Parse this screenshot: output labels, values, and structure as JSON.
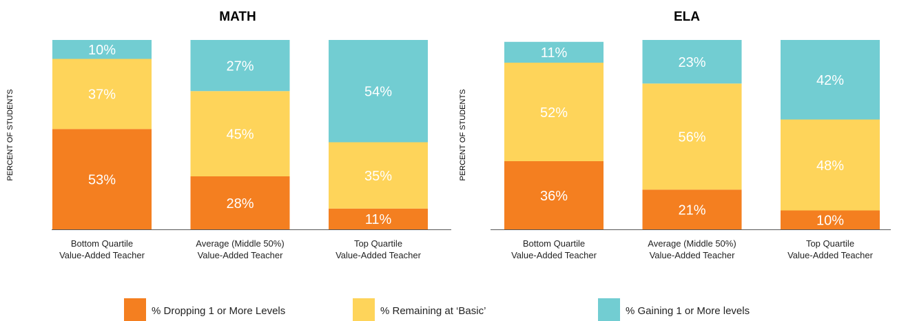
{
  "chart_data": [
    {
      "type": "stacked_bar",
      "title": "MATH",
      "y_label": "PERCENT OF STUDENTS",
      "categories": [
        "Bottom Quartile\nValue-Added Teacher",
        "Average (Middle 50%)\nValue-Added Teacher",
        "Top Quartile\nValue-Added Teacher"
      ],
      "ylim": [
        0,
        100
      ],
      "series": [
        {
          "name": "% Dropping 1 or More Levels",
          "color": "#f47f20",
          "values": [
            53,
            28,
            11
          ],
          "value_labels": [
            "53%",
            "28%",
            "11%"
          ]
        },
        {
          "name": "% Remaining at ‘Basic’",
          "color": "#fed45a",
          "values": [
            37,
            45,
            35
          ],
          "value_labels": [
            "37%",
            "45%",
            "35%"
          ]
        },
        {
          "name": "% Gaining 1 or More levels",
          "color": "#72cdd2",
          "values": [
            10,
            27,
            54
          ],
          "value_labels": [
            "10%",
            "27%",
            "54%"
          ]
        }
      ]
    },
    {
      "type": "stacked_bar",
      "title": "ELA",
      "y_label": "PERCENT OF STUDENTS",
      "categories": [
        "Bottom Quartile\nValue-Added Teacher",
        "Average (Middle 50%)\nValue-Added Teacher",
        "Top Quartile\nValue-Added Teacher"
      ],
      "ylim": [
        0,
        100
      ],
      "series": [
        {
          "name": "% Dropping 1 or More Levels",
          "color": "#f47f20",
          "values": [
            36,
            21,
            10
          ],
          "value_labels": [
            "36%",
            "21%",
            "10%"
          ]
        },
        {
          "name": "% Remaining at ‘Basic’",
          "color": "#fed45a",
          "values": [
            52,
            56,
            48
          ],
          "value_labels": [
            "52%",
            "56%",
            "48%"
          ]
        },
        {
          "name": "% Gaining 1 or More levels",
          "color": "#72cdd2",
          "values": [
            11,
            23,
            42
          ],
          "value_labels": [
            "11%",
            "23%",
            "42%"
          ]
        }
      ]
    }
  ]
}
